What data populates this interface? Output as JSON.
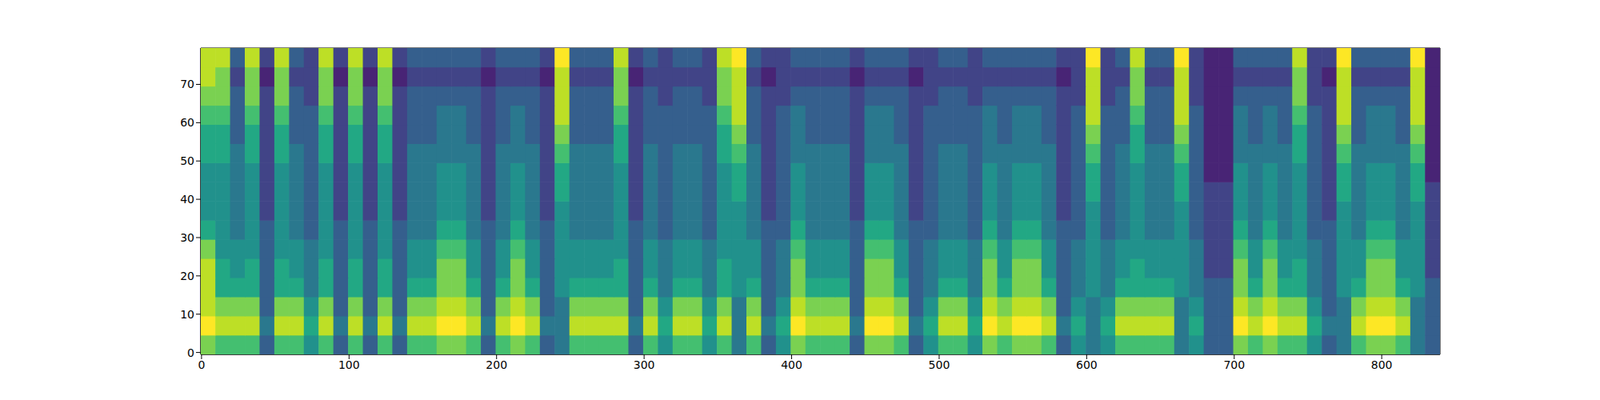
{
  "chart_data": {
    "type": "heatmap",
    "x": [
      4.5,
      14.5,
      24.5,
      34.5,
      44.5,
      54.5,
      64.5,
      74.5,
      84.5,
      94.5,
      104.5,
      114.5,
      124.5,
      134.5,
      144.5,
      154.5,
      164.5,
      174.5,
      184.5,
      194.5,
      204.5,
      214.5,
      224.5,
      234.5,
      244.5,
      254.5,
      264.5,
      274.5,
      284.5,
      294.5,
      304.5,
      314.5,
      324.5,
      334.5,
      344.5,
      354.5,
      364.5,
      374.5,
      384.5,
      394.5,
      404.5,
      414.5,
      424.5,
      434.5,
      444.5,
      454.5,
      464.5,
      474.5,
      484.5,
      494.5,
      504.5,
      514.5,
      524.5,
      534.5,
      544.5,
      554.5,
      564.5,
      574.5,
      584.5,
      594.5,
      604.5,
      614.5,
      624.5,
      634.5,
      644.5,
      654.5,
      664.5,
      674.5,
      684.5,
      694.5,
      704.5,
      714.5,
      724.5,
      734.5,
      744.5,
      754.5,
      764.5,
      774.5,
      784.5,
      794.5,
      804.5,
      814.5,
      824.5,
      834.5
    ],
    "y": [
      2,
      7,
      12,
      17,
      22,
      27,
      32,
      37,
      42,
      47,
      52,
      57,
      62,
      67,
      72,
      77
    ],
    "cells": [
      [
        8,
        7,
        7,
        7,
        3,
        7,
        7,
        5,
        7,
        3,
        7,
        3,
        7,
        3,
        7,
        7,
        8,
        8,
        7,
        3,
        7,
        8,
        7,
        3,
        4,
        7,
        7,
        7,
        7,
        3,
        7,
        5,
        7,
        7,
        5,
        7,
        4,
        7,
        3,
        5,
        8,
        7,
        7,
        7,
        3,
        8,
        8,
        7,
        3,
        5,
        7,
        7,
        5,
        8,
        7,
        8,
        8,
        7,
        3,
        5,
        4,
        5,
        7,
        7,
        7,
        7,
        4,
        5,
        3,
        3,
        8,
        7,
        8,
        7,
        7,
        5,
        3,
        4,
        7,
        8,
        8,
        7,
        4,
        3
      ],
      [
        10,
        9,
        9,
        9,
        4,
        9,
        9,
        6,
        9,
        4,
        9,
        4,
        9,
        4,
        9,
        9,
        10,
        10,
        9,
        4,
        9,
        10,
        9,
        4,
        4,
        9,
        9,
        9,
        9,
        4,
        9,
        6,
        9,
        9,
        6,
        9,
        4,
        9,
        4,
        6,
        10,
        9,
        9,
        9,
        4,
        10,
        10,
        9,
        4,
        6,
        9,
        9,
        6,
        10,
        9,
        10,
        10,
        9,
        4,
        6,
        4,
        6,
        9,
        9,
        9,
        9,
        4,
        6,
        3,
        3,
        10,
        9,
        10,
        9,
        9,
        6,
        4,
        4,
        9,
        10,
        10,
        9,
        4,
        3
      ],
      [
        9,
        8,
        8,
        8,
        3,
        8,
        8,
        5,
        8,
        3,
        8,
        3,
        8,
        3,
        8,
        8,
        9,
        9,
        8,
        3,
        8,
        9,
        8,
        3,
        4,
        8,
        8,
        8,
        8,
        3,
        8,
        5,
        8,
        8,
        5,
        8,
        4,
        8,
        3,
        5,
        9,
        8,
        8,
        8,
        3,
        9,
        9,
        8,
        3,
        5,
        8,
        8,
        5,
        9,
        8,
        9,
        9,
        8,
        3,
        5,
        4,
        5,
        8,
        8,
        8,
        8,
        4,
        5,
        3,
        3,
        9,
        8,
        9,
        8,
        8,
        5,
        3,
        4,
        8,
        9,
        9,
        8,
        4,
        3
      ],
      [
        9,
        6,
        6,
        6,
        3,
        6,
        6,
        4,
        6,
        3,
        6,
        3,
        6,
        3,
        6,
        6,
        8,
        8,
        6,
        3,
        6,
        8,
        6,
        3,
        5,
        6,
        6,
        6,
        6,
        3,
        6,
        4,
        6,
        6,
        4,
        6,
        5,
        6,
        3,
        4,
        8,
        6,
        6,
        6,
        3,
        8,
        8,
        6,
        3,
        4,
        6,
        6,
        4,
        8,
        6,
        8,
        8,
        6,
        3,
        4,
        5,
        4,
        6,
        6,
        6,
        6,
        5,
        4,
        3,
        3,
        8,
        6,
        8,
        6,
        6,
        4,
        3,
        5,
        6,
        8,
        8,
        6,
        5,
        3
      ],
      [
        9,
        6,
        5,
        6,
        3,
        6,
        5,
        4,
        6,
        3,
        6,
        3,
        6,
        3,
        5,
        5,
        8,
        8,
        5,
        3,
        5,
        8,
        5,
        3,
        5,
        5,
        5,
        5,
        6,
        3,
        5,
        4,
        5,
        5,
        4,
        6,
        5,
        5,
        3,
        4,
        8,
        5,
        5,
        5,
        3,
        8,
        8,
        5,
        3,
        4,
        5,
        5,
        4,
        8,
        5,
        8,
        8,
        5,
        3,
        4,
        5,
        4,
        5,
        6,
        5,
        5,
        5,
        4,
        2,
        2,
        8,
        5,
        8,
        5,
        6,
        4,
        3,
        5,
        5,
        8,
        8,
        5,
        5,
        2
      ],
      [
        8,
        5,
        5,
        5,
        3,
        5,
        5,
        4,
        5,
        3,
        5,
        3,
        5,
        3,
        5,
        5,
        7,
        7,
        5,
        3,
        5,
        7,
        5,
        3,
        5,
        5,
        5,
        5,
        5,
        3,
        5,
        4,
        5,
        5,
        4,
        5,
        5,
        5,
        3,
        4,
        7,
        5,
        5,
        5,
        3,
        7,
        7,
        5,
        3,
        4,
        5,
        5,
        4,
        7,
        5,
        7,
        7,
        5,
        3,
        4,
        5,
        4,
        5,
        5,
        5,
        5,
        5,
        4,
        2,
        2,
        7,
        5,
        7,
        5,
        5,
        4,
        3,
        5,
        5,
        7,
        7,
        5,
        5,
        2
      ],
      [
        6,
        5,
        4,
        5,
        3,
        5,
        4,
        3,
        5,
        3,
        5,
        3,
        5,
        3,
        4,
        4,
        6,
        6,
        4,
        3,
        4,
        6,
        4,
        3,
        5,
        4,
        4,
        4,
        5,
        3,
        4,
        3,
        4,
        4,
        3,
        5,
        5,
        4,
        3,
        3,
        6,
        4,
        4,
        4,
        3,
        6,
        6,
        4,
        3,
        3,
        4,
        4,
        3,
        6,
        4,
        6,
        6,
        4,
        3,
        3,
        5,
        3,
        4,
        5,
        4,
        4,
        5,
        3,
        2,
        2,
        6,
        4,
        6,
        4,
        5,
        3,
        3,
        5,
        4,
        6,
        6,
        4,
        5,
        2
      ],
      [
        5,
        5,
        4,
        5,
        2,
        5,
        4,
        3,
        5,
        2,
        5,
        2,
        5,
        2,
        4,
        4,
        5,
        5,
        4,
        2,
        4,
        5,
        4,
        2,
        5,
        4,
        4,
        4,
        5,
        2,
        4,
        3,
        4,
        4,
        3,
        5,
        5,
        4,
        2,
        3,
        5,
        4,
        4,
        4,
        2,
        5,
        5,
        4,
        2,
        3,
        4,
        4,
        3,
        5,
        4,
        5,
        5,
        4,
        2,
        3,
        5,
        3,
        4,
        5,
        4,
        4,
        5,
        3,
        2,
        2,
        5,
        4,
        5,
        4,
        5,
        3,
        2,
        5,
        4,
        5,
        5,
        4,
        5,
        2
      ],
      [
        5,
        5,
        4,
        5,
        2,
        5,
        4,
        3,
        5,
        2,
        5,
        2,
        5,
        2,
        4,
        4,
        5,
        5,
        4,
        2,
        4,
        5,
        4,
        2,
        6,
        4,
        4,
        4,
        5,
        2,
        4,
        3,
        4,
        4,
        3,
        5,
        6,
        4,
        2,
        3,
        5,
        4,
        4,
        4,
        2,
        5,
        5,
        4,
        2,
        3,
        4,
        4,
        3,
        5,
        4,
        5,
        5,
        4,
        2,
        3,
        6,
        3,
        4,
        5,
        4,
        4,
        6,
        3,
        2,
        2,
        5,
        4,
        5,
        4,
        5,
        3,
        2,
        6,
        4,
        5,
        5,
        4,
        6,
        2
      ],
      [
        5,
        5,
        4,
        5,
        2,
        5,
        4,
        3,
        5,
        2,
        5,
        2,
        5,
        2,
        4,
        4,
        5,
        5,
        4,
        2,
        4,
        5,
        4,
        2,
        6,
        4,
        4,
        4,
        5,
        2,
        4,
        3,
        4,
        4,
        3,
        5,
        6,
        4,
        2,
        3,
        5,
        4,
        4,
        4,
        2,
        5,
        5,
        4,
        2,
        3,
        4,
        4,
        3,
        5,
        4,
        5,
        5,
        4,
        2,
        3,
        6,
        3,
        4,
        5,
        4,
        4,
        6,
        3,
        1,
        1,
        5,
        4,
        5,
        4,
        5,
        3,
        2,
        6,
        4,
        5,
        5,
        4,
        6,
        1
      ],
      [
        6,
        6,
        4,
        6,
        2,
        6,
        4,
        3,
        6,
        2,
        6,
        2,
        6,
        2,
        4,
        4,
        4,
        4,
        4,
        2,
        4,
        4,
        4,
        2,
        7,
        4,
        4,
        4,
        6,
        2,
        4,
        3,
        4,
        4,
        3,
        6,
        7,
        4,
        2,
        3,
        4,
        4,
        4,
        4,
        2,
        4,
        4,
        4,
        2,
        3,
        4,
        4,
        3,
        4,
        4,
        4,
        4,
        4,
        2,
        3,
        7,
        3,
        4,
        6,
        4,
        4,
        7,
        3,
        1,
        1,
        4,
        4,
        4,
        4,
        6,
        3,
        2,
        7,
        4,
        4,
        4,
        4,
        7,
        1
      ],
      [
        6,
        6,
        3,
        6,
        2,
        6,
        3,
        3,
        6,
        2,
        6,
        2,
        6,
        2,
        3,
        3,
        4,
        4,
        3,
        2,
        3,
        4,
        3,
        2,
        8,
        3,
        3,
        3,
        6,
        2,
        3,
        3,
        3,
        3,
        3,
        6,
        8,
        3,
        2,
        3,
        4,
        3,
        3,
        3,
        2,
        4,
        4,
        3,
        2,
        3,
        3,
        3,
        3,
        4,
        3,
        4,
        4,
        3,
        2,
        3,
        8,
        3,
        3,
        6,
        3,
        3,
        8,
        3,
        1,
        1,
        4,
        3,
        4,
        3,
        6,
        3,
        2,
        8,
        3,
        4,
        4,
        3,
        8,
        1
      ],
      [
        7,
        7,
        3,
        7,
        2,
        7,
        3,
        3,
        7,
        2,
        7,
        2,
        7,
        2,
        3,
        3,
        4,
        4,
        3,
        2,
        3,
        4,
        3,
        2,
        9,
        3,
        3,
        3,
        7,
        2,
        3,
        3,
        3,
        3,
        3,
        7,
        9,
        3,
        2,
        3,
        4,
        3,
        3,
        3,
        2,
        4,
        4,
        3,
        2,
        3,
        3,
        3,
        3,
        4,
        3,
        4,
        4,
        3,
        2,
        3,
        9,
        3,
        3,
        7,
        3,
        3,
        9,
        3,
        1,
        1,
        4,
        3,
        4,
        3,
        7,
        3,
        2,
        9,
        3,
        4,
        4,
        3,
        9,
        1
      ],
      [
        8,
        8,
        3,
        8,
        2,
        8,
        3,
        2,
        8,
        2,
        8,
        2,
        8,
        2,
        3,
        3,
        3,
        3,
        3,
        2,
        3,
        3,
        3,
        2,
        9,
        3,
        3,
        3,
        8,
        2,
        3,
        2,
        3,
        3,
        2,
        8,
        9,
        3,
        2,
        2,
        3,
        3,
        3,
        3,
        2,
        3,
        3,
        3,
        2,
        2,
        3,
        3,
        2,
        3,
        3,
        3,
        3,
        3,
        2,
        2,
        9,
        2,
        3,
        8,
        3,
        3,
        9,
        2,
        1,
        1,
        3,
        3,
        3,
        3,
        8,
        2,
        2,
        9,
        3,
        3,
        3,
        3,
        9,
        1
      ],
      [
        9,
        8,
        2,
        8,
        1,
        8,
        2,
        2,
        8,
        1,
        8,
        1,
        8,
        1,
        2,
        2,
        2,
        2,
        2,
        1,
        2,
        2,
        2,
        1,
        9,
        2,
        2,
        2,
        8,
        1,
        2,
        2,
        2,
        2,
        2,
        8,
        9,
        2,
        1,
        2,
        2,
        2,
        2,
        2,
        1,
        2,
        2,
        2,
        1,
        2,
        2,
        2,
        2,
        2,
        2,
        2,
        2,
        2,
        1,
        2,
        9,
        2,
        2,
        8,
        2,
        2,
        9,
        2,
        1,
        1,
        2,
        2,
        2,
        2,
        8,
        2,
        1,
        9,
        2,
        2,
        2,
        2,
        9,
        1
      ],
      [
        9,
        9,
        3,
        9,
        2,
        9,
        3,
        2,
        9,
        2,
        9,
        2,
        9,
        2,
        3,
        3,
        3,
        3,
        3,
        2,
        3,
        3,
        3,
        2,
        10,
        3,
        3,
        3,
        9,
        2,
        3,
        2,
        3,
        3,
        2,
        9,
        10,
        3,
        2,
        2,
        3,
        3,
        3,
        3,
        2,
        3,
        3,
        3,
        2,
        2,
        3,
        3,
        2,
        3,
        3,
        3,
        3,
        3,
        2,
        2,
        10,
        2,
        3,
        9,
        3,
        3,
        10,
        2,
        1,
        1,
        3,
        3,
        3,
        3,
        9,
        2,
        2,
        10,
        3,
        3,
        3,
        3,
        10,
        1
      ]
    ],
    "zlim": [
      0,
      10
    ],
    "xlim": [
      -0.5,
      839.5
    ],
    "ylim": [
      -0.5,
      79.5
    ],
    "xticks": [
      0,
      100,
      200,
      300,
      400,
      500,
      600,
      700,
      800
    ],
    "yticks": [
      0,
      10,
      20,
      30,
      40,
      50,
      60,
      70
    ],
    "grid": false
  }
}
